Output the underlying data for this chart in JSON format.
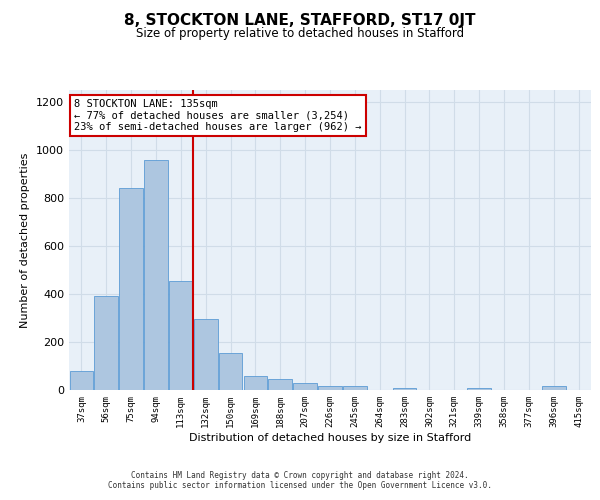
{
  "title": "8, STOCKTON LANE, STAFFORD, ST17 0JT",
  "subtitle": "Size of property relative to detached houses in Stafford",
  "xlabel": "Distribution of detached houses by size in Stafford",
  "ylabel": "Number of detached properties",
  "categories": [
    "37sqm",
    "56sqm",
    "75sqm",
    "94sqm",
    "113sqm",
    "132sqm",
    "150sqm",
    "169sqm",
    "188sqm",
    "207sqm",
    "226sqm",
    "245sqm",
    "264sqm",
    "283sqm",
    "302sqm",
    "321sqm",
    "339sqm",
    "358sqm",
    "377sqm",
    "396sqm",
    "415sqm"
  ],
  "values": [
    80,
    390,
    840,
    960,
    455,
    295,
    155,
    60,
    45,
    30,
    15,
    15,
    0,
    10,
    0,
    0,
    10,
    0,
    0,
    15,
    0
  ],
  "bar_color": "#adc6e0",
  "bar_edge_color": "#5b9bd5",
  "grid_color": "#d0dce8",
  "background_color": "#e8f0f8",
  "annotation_text": "8 STOCKTON LANE: 135sqm\n← 77% of detached houses are smaller (3,254)\n23% of semi-detached houses are larger (962) →",
  "annotation_box_color": "#ffffff",
  "annotation_border_color": "#cc0000",
  "vline_color": "#cc0000",
  "ylim": [
    0,
    1250
  ],
  "yticks": [
    0,
    200,
    400,
    600,
    800,
    1000,
    1200
  ],
  "footer_line1": "Contains HM Land Registry data © Crown copyright and database right 2024.",
  "footer_line2": "Contains public sector information licensed under the Open Government Licence v3.0."
}
